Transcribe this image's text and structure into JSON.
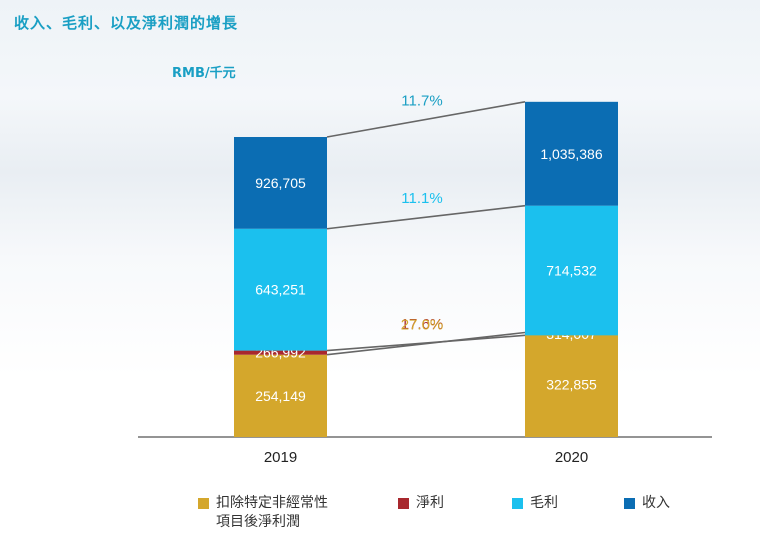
{
  "title": "收入、毛利、以及淨利潤的增長",
  "unit_label": "RMB/千元",
  "chart_data": {
    "type": "bar",
    "stacked": true,
    "categories": [
      "2019",
      "2020"
    ],
    "series": [
      {
        "name": "扣除特定非經常性項目後淨利潤",
        "color": "#d4a72c",
        "values": [
          254149,
          322855
        ],
        "labels": [
          "254,149",
          "322,855"
        ]
      },
      {
        "name": "淨利",
        "color": "#a8282e",
        "values": [
          266992,
          314007
        ],
        "labels": [
          "266,992",
          "314,007"
        ]
      },
      {
        "name": "毛利",
        "color": "#1bc0ee",
        "values": [
          643251,
          714532
        ],
        "labels": [
          "643,251",
          "714,532"
        ]
      },
      {
        "name": "收入",
        "color": "#0b6db3",
        "values": [
          926705,
          1035386
        ],
        "labels": [
          "926,705",
          "1,035,386"
        ]
      }
    ],
    "growth_labels": [
      {
        "series": "收入",
        "text": "11.7%",
        "color": "#1a9fc4"
      },
      {
        "series": "毛利",
        "text": "11.1%",
        "color": "#1bc0ee"
      },
      {
        "series": "淨利",
        "text": "17.6%",
        "color": "#a8282e"
      },
      {
        "series": "扣除特定非經常性項目後淨利潤",
        "text": "27.0%",
        "color": "#d4a72c"
      }
    ]
  },
  "legend": [
    {
      "line1": "扣除特定非經常性",
      "line2": "項目後淨利潤",
      "color": "#d4a72c"
    },
    {
      "line1": "淨利",
      "line2": "",
      "color": "#a8282e"
    },
    {
      "line1": "毛利",
      "line2": "",
      "color": "#1bc0ee"
    },
    {
      "line1": "收入",
      "line2": "",
      "color": "#0b6db3"
    }
  ]
}
